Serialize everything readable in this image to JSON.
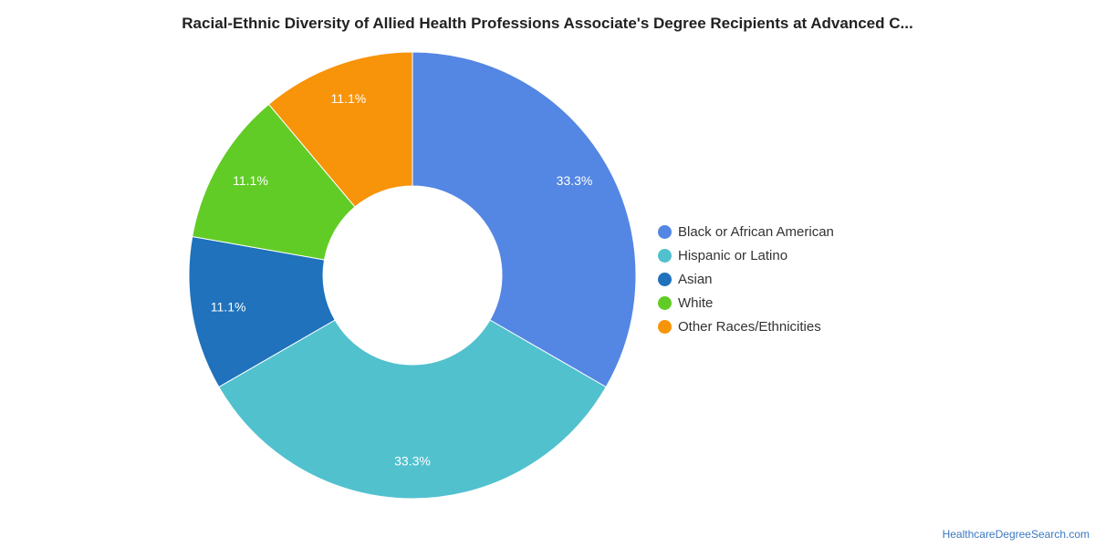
{
  "chart_data": {
    "type": "pie",
    "title": "Racial-Ethnic Diversity of Allied Health Professions Associate's Degree Recipients at Advanced C...",
    "donut": true,
    "legend_position": "right",
    "slices": [
      {
        "label": "Black or African American",
        "value": 33.3,
        "display": "33.3%",
        "color": "#5486e3"
      },
      {
        "label": "Hispanic or Latino",
        "value": 33.3,
        "display": "33.3%",
        "color": "#51c1ce"
      },
      {
        "label": "Asian",
        "value": 11.1,
        "display": "11.1%",
        "color": "#1f72bb"
      },
      {
        "label": "White",
        "value": 11.1,
        "display": "11.1%",
        "color": "#62cc26"
      },
      {
        "label": "Other Races/Ethnicities",
        "value": 11.1,
        "display": "11.1%",
        "color": "#f7940a"
      }
    ]
  },
  "footer": {
    "source": "HealthcareDegreeSearch.com"
  }
}
